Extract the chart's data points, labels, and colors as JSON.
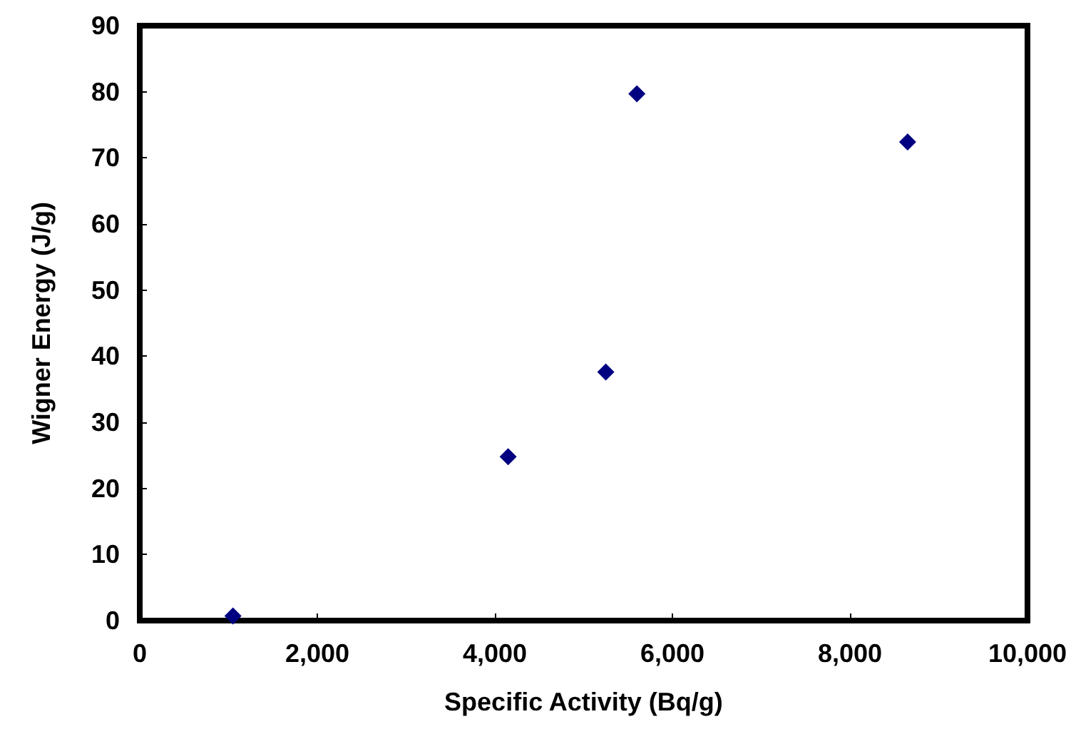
{
  "chart_data": {
    "type": "scatter",
    "xlabel": "Specific Activity (Bq/g)",
    "ylabel": "Wigner Energy (J/g)",
    "x": [
      1050,
      4150,
      5250,
      5600,
      8650
    ],
    "series": [
      {
        "color": "#000080",
        "values": [
          0.7,
          24.8,
          37.6,
          79.7,
          72.4
        ]
      }
    ],
    "xlim": [
      0,
      10000
    ],
    "xticks": [
      {
        "value": 0,
        "label": "0"
      },
      {
        "value": 2000,
        "label": "2,000"
      },
      {
        "value": 4000,
        "label": "4,000"
      },
      {
        "value": 6000,
        "label": "6,000"
      },
      {
        "value": 8000,
        "label": "8,000"
      },
      {
        "value": 10000,
        "label": "10,000"
      }
    ],
    "ylim": [
      0,
      90
    ],
    "yticks": [
      0,
      10,
      20,
      30,
      40,
      50,
      60,
      70,
      80,
      90
    ],
    "grid": false,
    "marker": "diamond"
  }
}
